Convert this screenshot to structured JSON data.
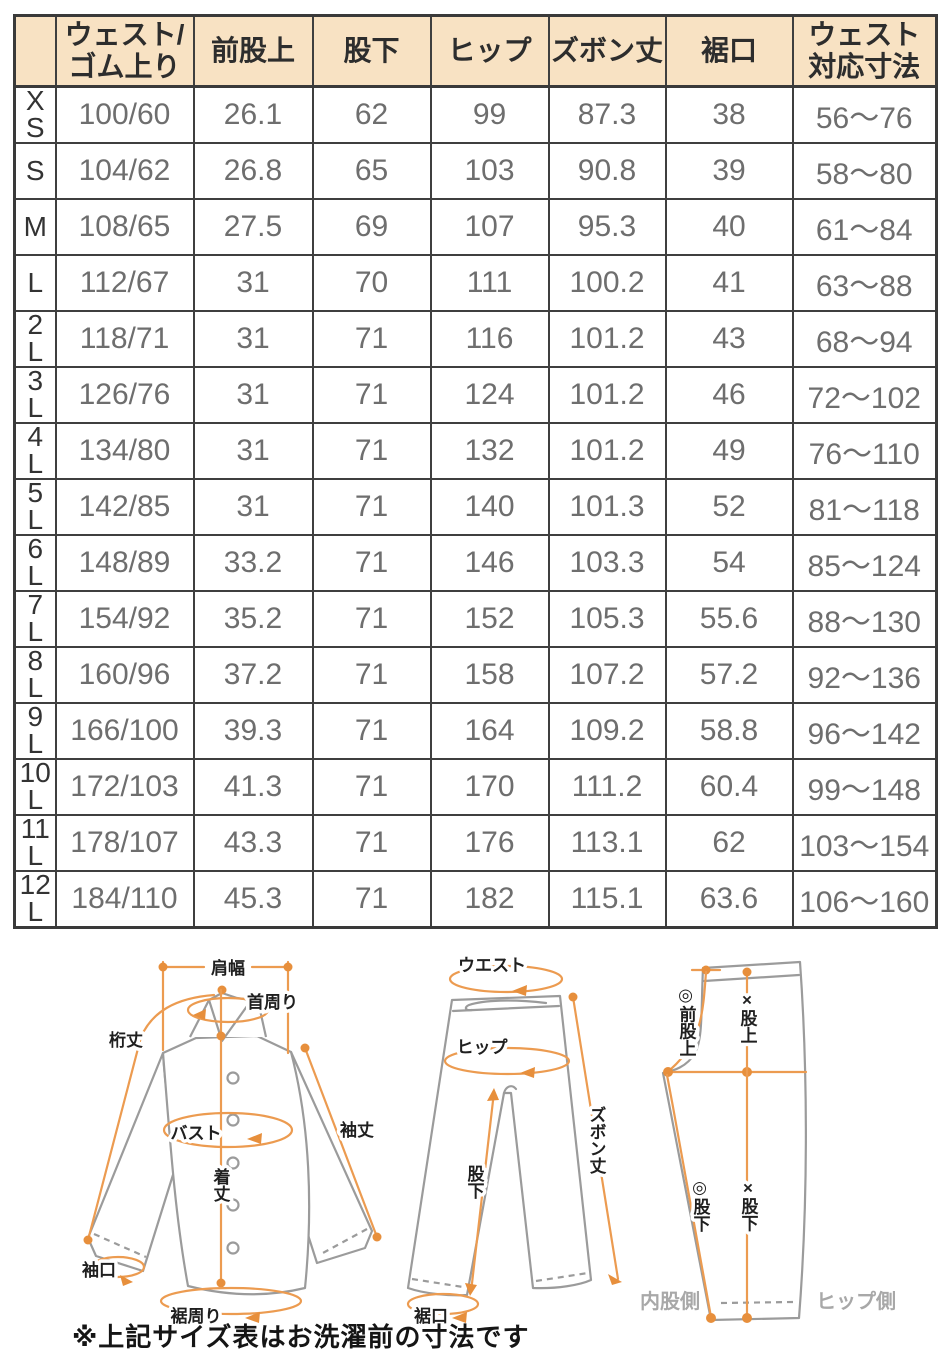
{
  "table": {
    "headers": [
      "",
      "ウェスト/\nゴム上り",
      "前股上",
      "股下",
      "ヒップ",
      "ズボン丈",
      "裾口",
      "ウェスト\n対応寸法"
    ],
    "rows": [
      {
        "size": "X\nS",
        "values": [
          "100/60",
          "26.1",
          "62",
          "99",
          "87.3",
          "38",
          "56〜76"
        ]
      },
      {
        "size": "S",
        "values": [
          "104/62",
          "26.8",
          "65",
          "103",
          "90.8",
          "39",
          "58〜80"
        ]
      },
      {
        "size": "M",
        "values": [
          "108/65",
          "27.5",
          "69",
          "107",
          "95.3",
          "40",
          "61〜84"
        ]
      },
      {
        "size": "L",
        "values": [
          "112/67",
          "31",
          "70",
          "111",
          "100.2",
          "41",
          "63〜88"
        ]
      },
      {
        "size": "2\nL",
        "values": [
          "118/71",
          "31",
          "71",
          "116",
          "101.2",
          "43",
          "68〜94"
        ]
      },
      {
        "size": "3\nL",
        "values": [
          "126/76",
          "31",
          "71",
          "124",
          "101.2",
          "46",
          "72〜102"
        ]
      },
      {
        "size": "4\nL",
        "values": [
          "134/80",
          "31",
          "71",
          "132",
          "101.2",
          "49",
          "76〜110"
        ]
      },
      {
        "size": "5\nL",
        "values": [
          "142/85",
          "31",
          "71",
          "140",
          "101.3",
          "52",
          "81〜118"
        ]
      },
      {
        "size": "6\nL",
        "values": [
          "148/89",
          "33.2",
          "71",
          "146",
          "103.3",
          "54",
          "85〜124"
        ]
      },
      {
        "size": "7\nL",
        "values": [
          "154/92",
          "35.2",
          "71",
          "152",
          "105.3",
          "55.6",
          "88〜130"
        ]
      },
      {
        "size": "8\nL",
        "values": [
          "160/96",
          "37.2",
          "71",
          "158",
          "107.2",
          "57.2",
          "92〜136"
        ]
      },
      {
        "size": "9\nL",
        "values": [
          "166/100",
          "39.3",
          "71",
          "164",
          "109.2",
          "58.8",
          "96〜142"
        ]
      },
      {
        "size": "10\nL",
        "values": [
          "172/103",
          "41.3",
          "71",
          "170",
          "111.2",
          "60.4",
          "99〜148"
        ]
      },
      {
        "size": "11\nL",
        "values": [
          "178/107",
          "43.3",
          "71",
          "176",
          "113.1",
          "62",
          "103〜154"
        ]
      },
      {
        "size": "12\nL",
        "values": [
          "184/110",
          "45.3",
          "71",
          "182",
          "115.1",
          "63.6",
          "106〜160"
        ]
      }
    ]
  },
  "diagrams": {
    "shirt": {
      "labels": {
        "shoulder_width": "肩幅",
        "neck_around": "首周り",
        "yuki_length": "桁丈",
        "bust": "バスト",
        "sleeve_length": "袖丈",
        "body_length": "着丈",
        "cuff_opening": "袖口",
        "hem_around": "裾周り"
      }
    },
    "pants_front": {
      "labels": {
        "waist": "ウエスト",
        "hip": "ヒップ",
        "pants_length": "ズボン丈",
        "inseam": "股下",
        "hem_opening": "裾口"
      }
    },
    "pants_side": {
      "labels": {
        "front_rise": "◎前股上",
        "rise": "×股上",
        "inseam_a": "◎股下",
        "inseam_b": "×股下",
        "inner_side": "内股側",
        "hip_side": "ヒップ側"
      }
    }
  },
  "note": "※上記サイズ表はお洗濯前の寸法です",
  "colors": {
    "header_bg": "#F8E2C3",
    "border": "#3a3a3a",
    "data_text": "#6e6e6e",
    "accent_orange": "#EC9B50",
    "outline_gray": "#9b9b9b"
  }
}
